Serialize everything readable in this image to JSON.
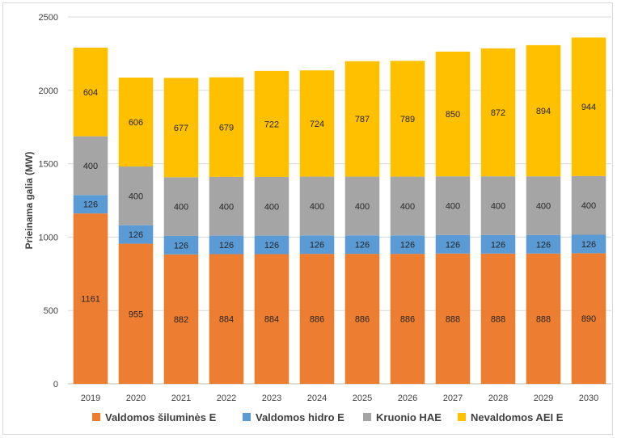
{
  "chart_data": {
    "type": "bar",
    "stacked": true,
    "categories": [
      "2019",
      "2020",
      "2021",
      "2022",
      "2023",
      "2024",
      "2025",
      "2026",
      "2027",
      "2028",
      "2029",
      "2030"
    ],
    "series": [
      {
        "name": "Valdomos šiluminės E",
        "color": "#ED7D31",
        "values": [
          1161,
          955,
          882,
          884,
          884,
          886,
          886,
          886,
          888,
          888,
          888,
          890
        ]
      },
      {
        "name": "Valdomos hidro E",
        "color": "#5B9BD5",
        "values": [
          126,
          126,
          126,
          126,
          126,
          126,
          126,
          126,
          126,
          126,
          126,
          126
        ]
      },
      {
        "name": "Kruonio HAE",
        "color": "#A5A5A5",
        "values": [
          400,
          400,
          400,
          400,
          400,
          400,
          400,
          400,
          400,
          400,
          400,
          400
        ]
      },
      {
        "name": "Nevaldomos AEI E",
        "color": "#FFC000",
        "values": [
          604,
          606,
          677,
          679,
          722,
          724,
          787,
          789,
          850,
          872,
          894,
          944
        ]
      }
    ],
    "ylabel": "Prieinama galia (MW)",
    "xlabel": "",
    "ylim": [
      0,
      2500
    ],
    "yticks": [
      0,
      500,
      1000,
      1500,
      2000,
      2500
    ],
    "grid": "horizontal",
    "legend": "bottom"
  }
}
